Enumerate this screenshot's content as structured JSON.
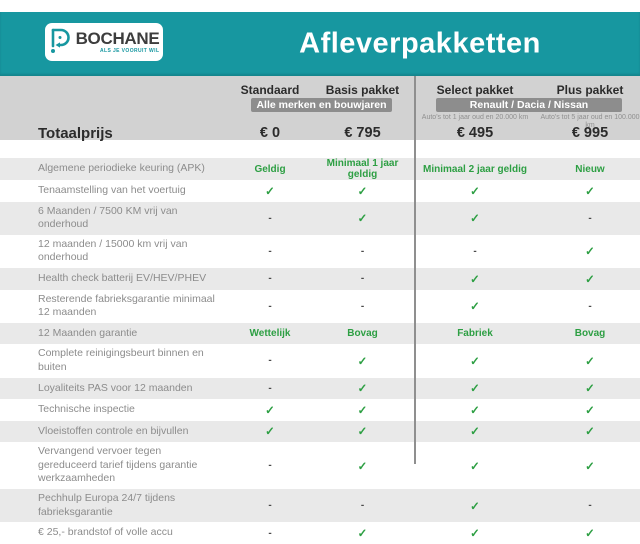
{
  "colors": {
    "teal": "#1797a0",
    "green": "#2d9f43",
    "badge_gray": "#8d8d8d",
    "panel_gray": "#d2d2d2",
    "row_gray": "#e9e9e9"
  },
  "header": {
    "brand": "BOCHANE",
    "tagline": "ALS JE VOORUIT WIL",
    "title": "Afleverpakketten"
  },
  "packages": [
    {
      "name": "Standaard pakket",
      "price": "€ 0",
      "note": ""
    },
    {
      "name": "Basis pakket",
      "price": "€ 795",
      "note": ""
    },
    {
      "name": "Select pakket",
      "price": "€ 495",
      "note": "Auto's tot 1 jaar oud en 20.000 km"
    },
    {
      "name": "Plus pakket",
      "price": "€ 995",
      "note": "Auto's tot 5 jaar oud en 100.000 km"
    }
  ],
  "badges": [
    {
      "label": "Alle merken en bouwjaren"
    },
    {
      "label": "Renault / Dacia / Nissan"
    }
  ],
  "total_label": "Totaalprijs",
  "features": [
    {
      "label": "Algemene periodieke keuring (APK)",
      "values": [
        "Geldig",
        "Minimaal 1 jaar geldig",
        "Minimaal 2 jaar geldig",
        "Nieuw"
      ]
    },
    {
      "label": "Tenaamstelling van het voertuig",
      "values": [
        "check",
        "check",
        "check",
        "check"
      ]
    },
    {
      "label": "6 Maanden / 7500 KM vrij van onderhoud",
      "values": [
        "dash",
        "check",
        "check",
        "dash"
      ]
    },
    {
      "label": "12 maanden / 15000 km vrij van onderhoud",
      "values": [
        "dash",
        "dash",
        "dash",
        "check"
      ]
    },
    {
      "label": "Health check batterij EV/HEV/PHEV",
      "values": [
        "dash",
        "dash",
        "check",
        "check"
      ]
    },
    {
      "label": "Resterende fabrieksgarantie minimaal 12 maanden",
      "values": [
        "dash",
        "dash",
        "check",
        "dash"
      ]
    },
    {
      "label": "12 Maanden  garantie",
      "values": [
        "Wettelijk",
        "Bovag",
        "Fabriek",
        "Bovag"
      ]
    },
    {
      "label": "Complete reinigingsbeurt binnen en buiten",
      "values": [
        "dash",
        "check",
        "check",
        "check"
      ]
    },
    {
      "label": "Loyaliteits PAS voor 12 maanden",
      "values": [
        "dash",
        "check",
        "check",
        "check"
      ]
    },
    {
      "label": "Technische inspectie",
      "values": [
        "check",
        "check",
        "check",
        "check"
      ]
    },
    {
      "label": "Vloeistoffen controle en bijvullen",
      "values": [
        "check",
        "check",
        "check",
        "check"
      ]
    },
    {
      "label": "Vervangend vervoer tegen gereduceerd tarief tijdens garantie werkzaamheden",
      "values": [
        "dash",
        "check",
        "check",
        "check"
      ]
    },
    {
      "label": "Pechhulp Europa 24/7 tijdens fabrieksgarantie",
      "values": [
        "dash",
        "dash",
        "check",
        "dash"
      ]
    },
    {
      "label": "€ 25,- brandstof of volle accu",
      "values": [
        "dash",
        "check",
        "check",
        "check"
      ]
    }
  ],
  "glyphs": {
    "check": "✓",
    "dash": "-"
  }
}
